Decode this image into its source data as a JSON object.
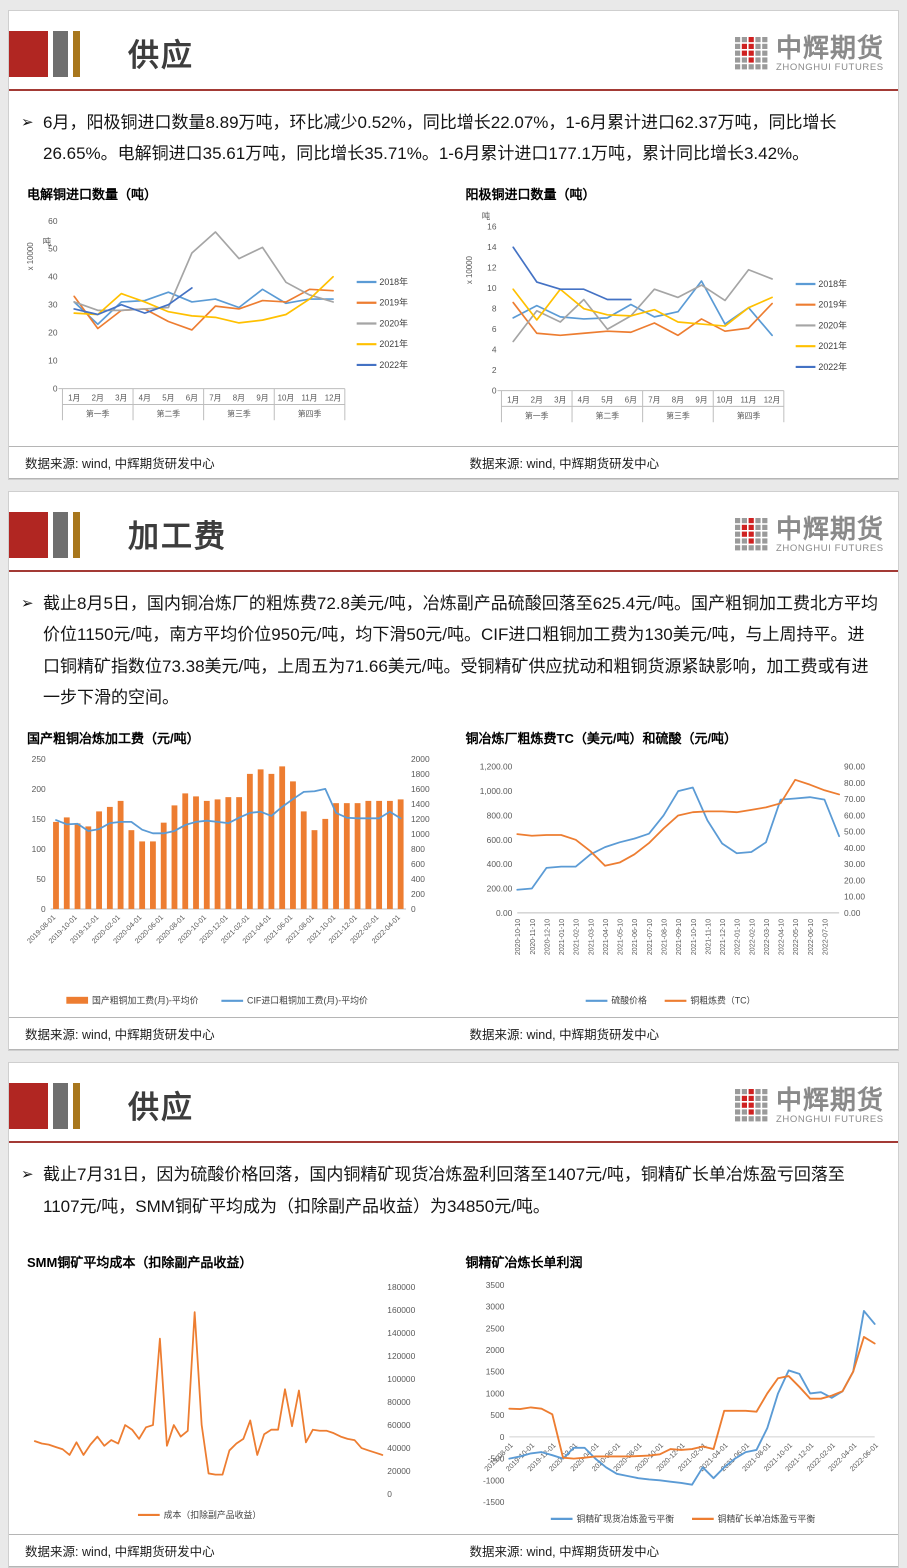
{
  "colors": {
    "blue": "#5b9bd5",
    "orange": "#ed7d31",
    "gray": "#a5a5a5",
    "yellow": "#ffc000",
    "darkblue": "#4472c4",
    "accent_red": "#b12622",
    "rule_red": "#a33a35",
    "logo_red": "#cf2020",
    "logo_gray": "#9a9a9a"
  },
  "logo": {
    "cn": "中辉期货",
    "en": "ZHONGHUI FUTURES"
  },
  "source": "数据来源: wind, 中辉期货研发中心",
  "panels": [
    {
      "title": "供应",
      "bullet": "➢",
      "text": "6月，阳极铜进口数量8.89万吨，环比减少0.52%，同比增长22.07%，1-6月累计进口62.37万吨，同比增长26.65%。电解铜进口35.61万吨，同比增长35.71%。1-6月累计进口177.1万吨，累计同比增长3.42%。"
    },
    {
      "title": "加工费",
      "bullet": "➢",
      "text": "截止8月5日，国内铜冶炼厂的粗炼费72.8美元/吨，冶炼副产品硫酸回落至625.4元/吨。国产粗铜加工费北方平均价位1150元/吨，南方平均价位950元/吨，均下滑50元/吨。CIF进口粗铜加工费为130美元/吨，与上周持平。进口铜精矿指数位73.38美元/吨，上周五为71.66美元/吨。受铜精矿供应扰动和粗铜货源紧缺影响，加工费或有进一步下滑的空间。"
    },
    {
      "title": "供应",
      "bullet": "➢",
      "text": "截止7月31日，因为硫酸价格回落，国内铜精矿现货冶炼盈利回落至1407元/吨，铜精矿长单冶炼盈亏回落至1107元/吨，SMM铜矿平均成为（扣除副产品收益）为34850元/吨。"
    }
  ],
  "chart_data": [
    {
      "type": "line",
      "title": "电解铜进口数量（吨）",
      "y_unit": [
        "x 10000",
        "吨"
      ],
      "ylim": [
        0,
        60
      ],
      "ystep": 10,
      "categories": [
        "1月",
        "2月",
        "3月",
        "4月",
        "5月",
        "6月",
        "7月",
        "8月",
        "9月",
        "10月",
        "11月",
        "12月"
      ],
      "quarters": [
        "第一季",
        "第二季",
        "第三季",
        "第四季"
      ],
      "legend_position": "right",
      "series": [
        {
          "name": "2018年",
          "color": "blue",
          "values": [
            31,
            23,
            31,
            31.5,
            34.5,
            31,
            32,
            29,
            35.5,
            30.5,
            32,
            32
          ]
        },
        {
          "name": "2019年",
          "color": "orange",
          "values": [
            33,
            21.5,
            28,
            28.5,
            24,
            21,
            29.5,
            28.5,
            31.5,
            31,
            35.5,
            35
          ]
        },
        {
          "name": "2020年",
          "color": "gray",
          "values": [
            31,
            28,
            28,
            28.5,
            29,
            48.5,
            56,
            46.5,
            50.5,
            38,
            33.5,
            31
          ]
        },
        {
          "name": "2021年",
          "color": "yellow",
          "values": [
            27,
            26.5,
            34,
            31,
            27.5,
            26,
            25.5,
            23.5,
            24.5,
            26.5,
            32,
            40
          ]
        },
        {
          "name": "2022年",
          "color": "darkblue",
          "values": [
            28.5,
            26.5,
            30,
            27,
            30,
            36
          ]
        }
      ]
    },
    {
      "type": "line",
      "title": "阳极铜进口数量（吨）",
      "y_unit": [
        "x 10000",
        "吨"
      ],
      "ylim": [
        0,
        16
      ],
      "ystep": 2,
      "categories": [
        "1月",
        "2月",
        "3月",
        "4月",
        "5月",
        "6月",
        "7月",
        "8月",
        "9月",
        "10月",
        "11月",
        "12月"
      ],
      "quarters": [
        "第一季",
        "第二季",
        "第三季",
        "第四季"
      ],
      "legend_position": "right",
      "series": [
        {
          "name": "2018年",
          "color": "blue",
          "values": [
            7.1,
            8.3,
            7.2,
            7.0,
            7.1,
            8.4,
            7.2,
            7.7,
            10.7,
            6.5,
            8.1,
            5.4
          ]
        },
        {
          "name": "2019年",
          "color": "orange",
          "values": [
            8.6,
            5.6,
            5.4,
            5.6,
            5.8,
            5.7,
            6.6,
            5.4,
            7.0,
            5.8,
            6.1,
            8.5
          ]
        },
        {
          "name": "2020年",
          "color": "gray",
          "values": [
            4.8,
            7.8,
            6.7,
            8.9,
            6.0,
            7.3,
            9.9,
            9.1,
            10.3,
            8.8,
            11.8,
            10.9
          ]
        },
        {
          "name": "2021年",
          "color": "yellow",
          "values": [
            9.9,
            6.9,
            9.9,
            8.0,
            7.4,
            7.3,
            7.9,
            6.7,
            6.5,
            6.3,
            8.1,
            9.1
          ]
        },
        {
          "name": "2022年",
          "color": "darkblue",
          "values": [
            14.0,
            10.6,
            9.9,
            9.9,
            8.9,
            8.9
          ]
        }
      ]
    },
    {
      "type": "bar-line",
      "title": "国产粗铜冶炼加工费（元/吨）",
      "left_axis": {
        "lim": [
          0,
          250
        ],
        "step": 50
      },
      "right_axis": {
        "lim": [
          0,
          2000
        ],
        "step": 200
      },
      "x_labels": [
        "2019-08-01",
        "2019-10-01",
        "2019-12-01",
        "2020-02-01",
        "2020-04-01",
        "2020-06-01",
        "2020-08-01",
        "2020-10-01",
        "2020-12-01",
        "2021-02-01",
        "2021-04-01",
        "2021-06-01",
        "2021-08-01",
        "2021-10-01",
        "2021-12-01",
        "2022-02-01",
        "2022-04-01"
      ],
      "legend_position": "bottom",
      "series": [
        {
          "name": "国产粗铜加工费(月)-平均价",
          "kind": "bar",
          "axis": "right",
          "color": "orange",
          "values": [
            1160,
            1220,
            1140,
            1100,
            1300,
            1360,
            1440,
            1050,
            900,
            900,
            1150,
            1380,
            1540,
            1500,
            1440,
            1460,
            1490,
            1490,
            1800,
            1860,
            1800,
            1900,
            1700,
            1300,
            1050,
            1200,
            1410,
            1410,
            1410,
            1440,
            1440,
            1440,
            1460
          ]
        },
        {
          "name": "CIF进口粗铜加工费(月)-平均价",
          "kind": "line",
          "axis": "left",
          "color": "blue",
          "values": [
            148,
            141,
            142,
            130,
            133,
            143,
            145,
            145,
            132,
            126,
            126,
            130,
            140,
            145,
            147,
            145,
            143,
            152,
            160,
            162,
            155,
            170,
            183,
            195,
            196,
            200,
            160,
            152,
            151,
            151,
            151,
            162,
            151
          ]
        }
      ]
    },
    {
      "type": "line2",
      "title": "铜冶炼厂粗炼费TC（美元/吨）和硫酸（元/吨）",
      "left_axis": {
        "lim": [
          0,
          1200
        ],
        "step": 200,
        "fmt": "comma2"
      },
      "right_axis": {
        "lim": [
          0,
          90
        ],
        "step": 10,
        "fmt": "fix2"
      },
      "x_labels": [
        "2020-10-10",
        "2020-11-10",
        "2020-12-10",
        "2021-01-10",
        "2021-02-10",
        "2021-03-10",
        "2021-04-10",
        "2021-05-10",
        "2021-06-10",
        "2021-07-10",
        "2021-08-10",
        "2021-09-10",
        "2021-10-10",
        "2021-11-10",
        "2021-12-10",
        "2022-01-10",
        "2022-02-10",
        "2022-03-10",
        "2022-04-10",
        "2022-05-10",
        "2022-06-10",
        "2022-07-10"
      ],
      "legend_position": "bottom",
      "series": [
        {
          "name": "硫酸价格",
          "kind": "line",
          "axis": "left",
          "color": "blue",
          "values": [
            190,
            200,
            370,
            380,
            380,
            480,
            540,
            580,
            610,
            650,
            800,
            1000,
            1030,
            760,
            570,
            490,
            500,
            580,
            930,
            940,
            950,
            930,
            630
          ]
        },
        {
          "name": "铜粗炼费（TC）",
          "kind": "line",
          "axis": "right",
          "color": "orange",
          "values": [
            48.5,
            47.5,
            48,
            48,
            45,
            38,
            29,
            31,
            36,
            43,
            52,
            60,
            62,
            62.5,
            62.5,
            62,
            63.5,
            65,
            67.5,
            82,
            79,
            75.5,
            73
          ]
        }
      ]
    },
    {
      "type": "line1",
      "title": "SMM铜矿平均成本（扣除副产品收益）",
      "right_axis": {
        "lim": [
          0,
          180000
        ],
        "step": 20000
      },
      "legend_position": "bottom",
      "series": [
        {
          "name": "成本（扣除副产品收益）",
          "kind": "line",
          "axis": "right",
          "color": "orange",
          "values": [
            46000,
            44000,
            43000,
            41000,
            39000,
            34000,
            45000,
            34000,
            43000,
            50000,
            42000,
            47000,
            44000,
            60000,
            56000,
            48000,
            58000,
            60000,
            135000,
            42000,
            60000,
            50000,
            55000,
            158000,
            60000,
            18000,
            17000,
            17000,
            38000,
            44000,
            48000,
            64000,
            34000,
            52000,
            56000,
            56000,
            91000,
            59000,
            90000,
            45000,
            56000,
            55000,
            55000,
            53000,
            50000,
            48000,
            47000,
            40000,
            38000,
            36000,
            34000
          ]
        }
      ]
    },
    {
      "type": "line2",
      "title": "铜精矿冶炼长单利润",
      "left_axis": {
        "lim": [
          -1500,
          3500
        ],
        "step": 500
      },
      "x_labels": [
        "2019-08-01",
        "2019-10-01",
        "2019-12-01",
        "2020-02-01",
        "2020-04-01",
        "2020-06-01",
        "2020-08-01",
        "2020-10-01",
        "2020-12-01",
        "2021-02-01",
        "2021-04-01",
        "2021-06-01",
        "2021-08-01",
        "2021-10-01",
        "2021-12-01",
        "2022-02-01",
        "2022-04-01",
        "2022-06-01"
      ],
      "legend_position": "bottom",
      "series": [
        {
          "name": "铜精矿现货冶炼盈亏平衡",
          "kind": "line",
          "axis": "left",
          "color": "blue",
          "values": [
            -500,
            -450,
            -380,
            -350,
            -420,
            -500,
            -250,
            -250,
            -500,
            -700,
            -850,
            -900,
            -950,
            -980,
            -1000,
            -1030,
            -1060,
            -1100,
            -700,
            -950,
            -700,
            -500,
            -350,
            -300,
            200,
            1000,
            1530,
            1450,
            1000,
            1030,
            900,
            1050,
            1500,
            2900,
            2600
          ]
        },
        {
          "name": "铜精矿长单冶炼盈亏平衡",
          "kind": "line",
          "axis": "left",
          "color": "orange",
          "values": [
            650,
            640,
            680,
            650,
            520,
            -480,
            -500,
            -480,
            -450,
            -450,
            -450,
            -450,
            -440,
            -430,
            -400,
            -280,
            -300,
            -280,
            -220,
            -280,
            600,
            600,
            600,
            580,
            1000,
            1350,
            1400,
            1150,
            880,
            880,
            950,
            1050,
            1500,
            2300,
            2150
          ]
        }
      ]
    }
  ]
}
